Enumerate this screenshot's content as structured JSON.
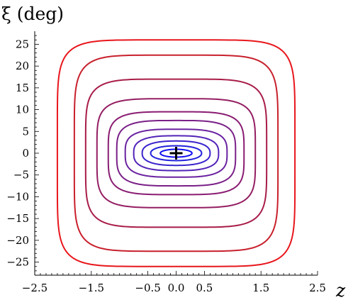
{
  "chart_data": {
    "type": "line",
    "xlabel": "z",
    "ylabel": "ξ (deg)",
    "xlim": [
      -2.5,
      2.5
    ],
    "ylim": [
      -28,
      28
    ],
    "grid": false,
    "legend": false,
    "x_ticks": [
      -2.5,
      -1.5,
      -0.5,
      0.0,
      0.5,
      1.5,
      2.5
    ],
    "x_tick_labels": [
      "−2.5",
      "−1.5",
      "−0.5",
      "0.0",
      "0.5",
      "1.5",
      "2.5"
    ],
    "y_ticks": [
      -25,
      -20,
      -15,
      -10,
      -5,
      0,
      5,
      10,
      15,
      20,
      25
    ],
    "y_tick_labels": [
      "−25",
      "−20",
      "−15",
      "−10",
      "−5",
      "0",
      "5",
      "10",
      "15",
      "20",
      "25"
    ],
    "contours": [
      {
        "z_half_width": 2.1,
        "xi_half_height": 26.0,
        "color": "#e8161c"
      },
      {
        "z_half_width": 1.8,
        "xi_half_height": 22.5,
        "color": "#c8202c"
      },
      {
        "z_half_width": 1.6,
        "xi_half_height": 17.0,
        "color": "#a81c48"
      },
      {
        "z_half_width": 1.4,
        "xi_half_height": 12.5,
        "color": "#941e62"
      },
      {
        "z_half_width": 1.2,
        "xi_half_height": 9.5,
        "color": "#8a1c72"
      },
      {
        "z_half_width": 1.05,
        "xi_half_height": 7.5,
        "color": "#7a2088"
      },
      {
        "z_half_width": 0.9,
        "xi_half_height": 5.5,
        "color": "#6a22a0"
      },
      {
        "z_half_width": 0.75,
        "xi_half_height": 4.0,
        "color": "#5224b8"
      },
      {
        "z_half_width": 0.6,
        "xi_half_height": 2.8,
        "color": "#3a24cc"
      },
      {
        "z_half_width": 0.45,
        "xi_half_height": 1.7,
        "color": "#2222dc"
      },
      {
        "z_half_width": 0.28,
        "xi_half_height": 0.9,
        "color": "#1010f0"
      }
    ],
    "center_point": {
      "z": 0.0,
      "xi": 0.0,
      "marker": "plus"
    }
  }
}
